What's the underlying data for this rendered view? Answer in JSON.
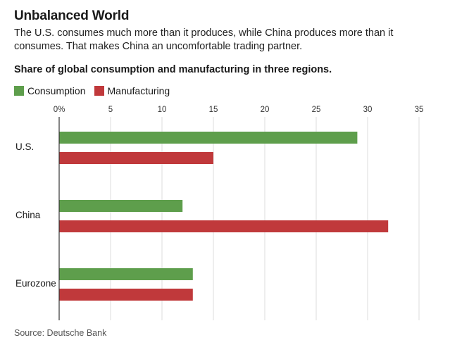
{
  "header": {
    "title": "Unbalanced World",
    "subtitle": "The U.S. consumes much more than it produces, while China produces more than it consumes. That makes China an uncomfortable trading partner."
  },
  "chart_data": {
    "type": "bar",
    "orientation": "horizontal",
    "title": "Share of global consumption and manufacturing in three regions.",
    "categories": [
      "U.S.",
      "China",
      "Eurozone"
    ],
    "series": [
      {
        "name": "Consumption",
        "color": "#5e9e4c",
        "values": [
          29,
          12,
          13
        ]
      },
      {
        "name": "Manufacturing",
        "color": "#c0393b",
        "values": [
          15,
          32,
          13
        ]
      }
    ],
    "xticks": [
      "0%",
      "5",
      "10",
      "15",
      "20",
      "25",
      "30",
      "35"
    ],
    "xlim": [
      0,
      35
    ],
    "grid": true,
    "legend_position": "top-left"
  },
  "footer": {
    "source": "Source: Deutsche Bank"
  }
}
